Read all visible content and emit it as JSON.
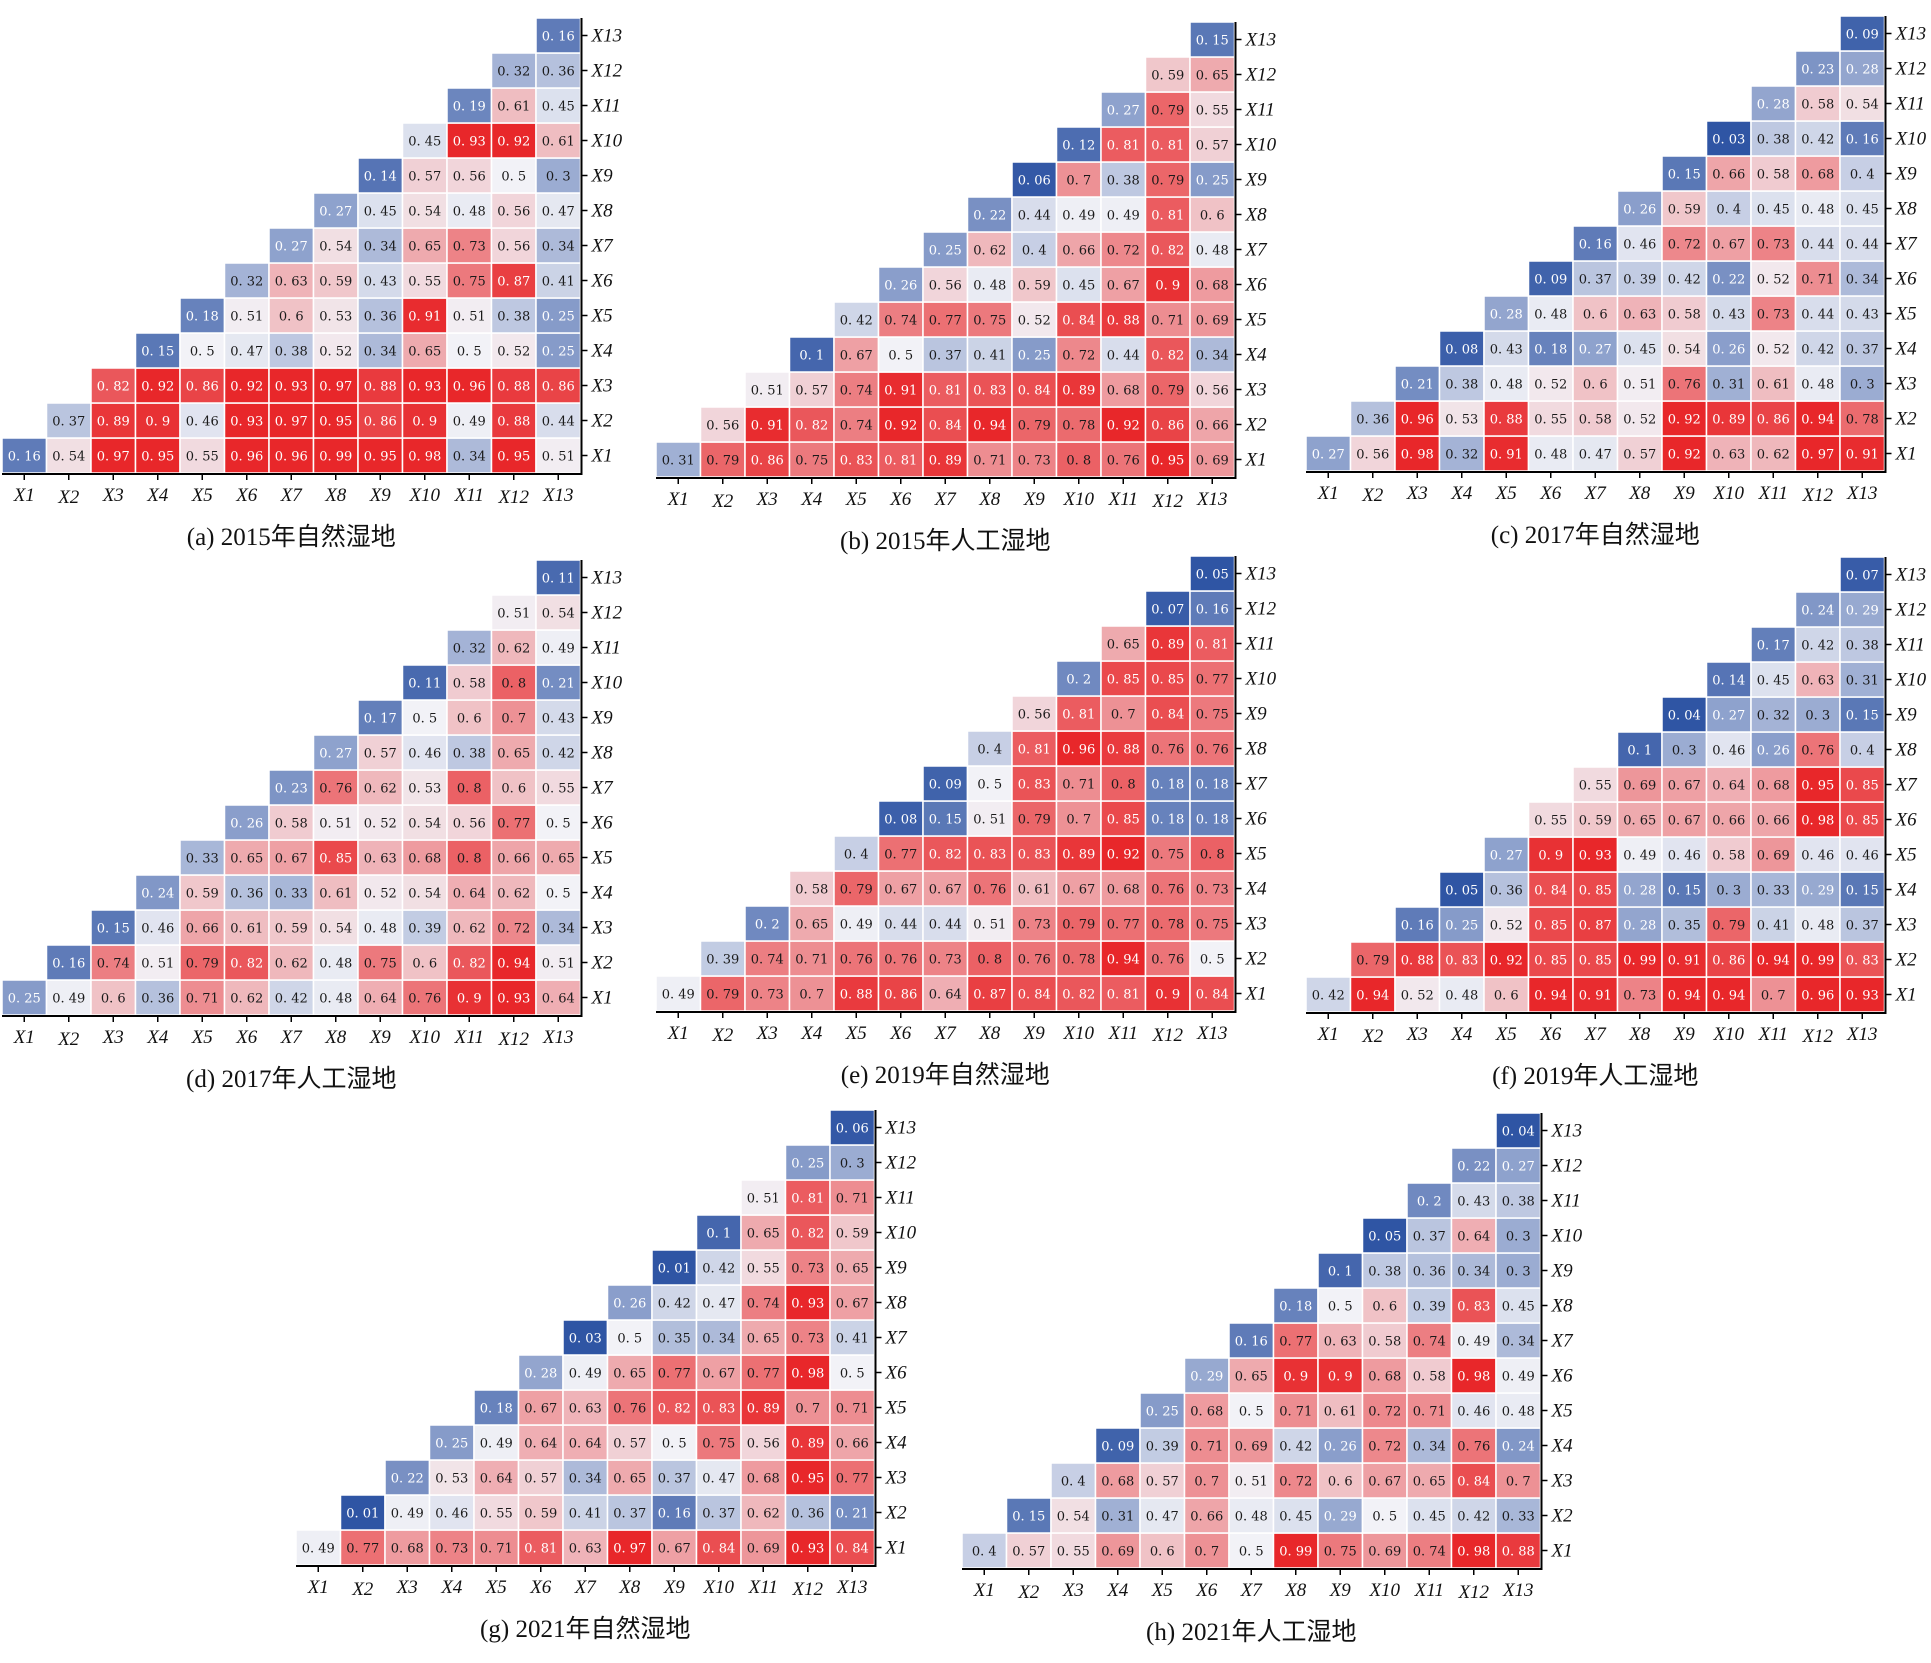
{
  "chart_data": [
    {
      "type": "heatmap",
      "id": "a",
      "title": "(a) 2015年自然湿地",
      "xlabels": [
        "X1",
        "X2",
        "X3",
        "X4",
        "X5",
        "X6",
        "X7",
        "X8",
        "X9",
        "X10",
        "X11",
        "X12",
        "X13"
      ],
      "ylabels": [
        "X1",
        "X2",
        "X3",
        "X4",
        "X5",
        "X6",
        "X7",
        "X8",
        "X9",
        "X10",
        "X11",
        "X12",
        "X13"
      ],
      "rows": [
        [
          "0.16",
          "0.54",
          "0.97",
          "0.95",
          "0.55",
          "0.96",
          "0.96",
          "0.99",
          "0.95",
          "0.98",
          "0.34",
          "0.95",
          "0.51"
        ],
        [
          "0.37",
          "0.89",
          "0.9",
          "0.46",
          "0.93",
          "0.97",
          "0.95",
          "0.86",
          "0.9",
          "0.49",
          "0.88",
          "0.44"
        ],
        [
          "0.82",
          "0.92",
          "0.86",
          "0.92",
          "0.93",
          "0.97",
          "0.88",
          "0.93",
          "0.96",
          "0.88",
          "0.86"
        ],
        [
          "0.15",
          "0.5",
          "0.47",
          "0.38",
          "0.52",
          "0.34",
          "0.65",
          "0.5",
          "0.52",
          "0.25"
        ],
        [
          "0.18",
          "0.51",
          "0.6",
          "0.53",
          "0.36",
          "0.91",
          "0.51",
          "0.38",
          "0.25"
        ],
        [
          "0.32",
          "0.63",
          "0.59",
          "0.43",
          "0.55",
          "0.75",
          "0.87",
          "0.41"
        ],
        [
          "0.27",
          "0.54",
          "0.34",
          "0.65",
          "0.73",
          "0.56",
          "0.34"
        ],
        [
          "0.27",
          "0.45",
          "0.54",
          "0.48",
          "0.56",
          "0.47"
        ],
        [
          "0.14",
          "0.57",
          "0.56",
          "0.5",
          "0.3"
        ],
        [
          "0.45",
          "0.93",
          "0.92",
          "0.61"
        ],
        [
          "0.19",
          "0.61",
          "0.45"
        ],
        [
          "0.32",
          "0.36"
        ],
        [
          "0.16"
        ]
      ]
    },
    {
      "type": "heatmap",
      "id": "b",
      "title": "(b) 2015年人工湿地",
      "xlabels": [
        "X1",
        "X2",
        "X3",
        "X4",
        "X5",
        "X6",
        "X7",
        "X8",
        "X9",
        "X10",
        "X11",
        "X12",
        "X13"
      ],
      "ylabels": [
        "X1",
        "X2",
        "X3",
        "X4",
        "X5",
        "X6",
        "X7",
        "X8",
        "X9",
        "X10",
        "X11",
        "X12",
        "X13"
      ],
      "rows": [
        [
          "0.31",
          "0.79",
          "0.86",
          "0.75",
          "0.83",
          "0.81",
          "0.89",
          "0.71",
          "0.73",
          "0.8",
          "0.76",
          "0.95",
          "0.69"
        ],
        [
          "0.56",
          "0.91",
          "0.82",
          "0.74",
          "0.92",
          "0.84",
          "0.94",
          "0.79",
          "0.78",
          "0.92",
          "0.86",
          "0.66"
        ],
        [
          "0.51",
          "0.57",
          "0.74",
          "0.91",
          "0.81",
          "0.83",
          "0.84",
          "0.89",
          "0.68",
          "0.79",
          "0.56"
        ],
        [
          "0.1",
          "0.67",
          "0.5",
          "0.37",
          "0.41",
          "0.25",
          "0.72",
          "0.44",
          "0.82",
          "0.34"
        ],
        [
          "0.42",
          "0.74",
          "0.77",
          "0.75",
          "0.52",
          "0.84",
          "0.88",
          "0.71",
          "0.69"
        ],
        [
          "0.26",
          "0.56",
          "0.48",
          "0.59",
          "0.45",
          "0.67",
          "0.9",
          "0.68"
        ],
        [
          "0.25",
          "0.62",
          "0.4",
          "0.66",
          "0.72",
          "0.82",
          "0.48"
        ],
        [
          "0.22",
          "0.44",
          "0.49",
          "0.49",
          "0.81",
          "0.6"
        ],
        [
          "0.06",
          "0.7",
          "0.38",
          "0.79",
          "0.25"
        ],
        [
          "0.12",
          "0.81",
          "0.81",
          "0.57"
        ],
        [
          "0.27",
          "0.79",
          "0.55"
        ],
        [
          "0.59",
          "0.65"
        ],
        [
          "0.15"
        ]
      ]
    },
    {
      "type": "heatmap",
      "id": "c",
      "title": "(c) 2017年自然湿地",
      "xlabels": [
        "X1",
        "X2",
        "X3",
        "X4",
        "X5",
        "X6",
        "X7",
        "X8",
        "X9",
        "X10",
        "X11",
        "X12",
        "X13"
      ],
      "ylabels": [
        "X1",
        "X2",
        "X3",
        "X4",
        "X5",
        "X6",
        "X7",
        "X8",
        "X9",
        "X10",
        "X11",
        "X12",
        "X13"
      ],
      "rows": [
        [
          "0.27",
          "0.56",
          "0.98",
          "0.32",
          "0.91",
          "0.48",
          "0.47",
          "0.57",
          "0.92",
          "0.63",
          "0.62",
          "0.97",
          "0.91"
        ],
        [
          "0.36",
          "0.96",
          "0.53",
          "0.88",
          "0.55",
          "0.58",
          "0.52",
          "0.92",
          "0.89",
          "0.86",
          "0.94",
          "0.78"
        ],
        [
          "0.21",
          "0.38",
          "0.48",
          "0.52",
          "0.6",
          "0.51",
          "0.76",
          "0.31",
          "0.61",
          "0.48",
          "0.3"
        ],
        [
          "0.08",
          "0.43",
          "0.18",
          "0.27",
          "0.45",
          "0.54",
          "0.26",
          "0.52",
          "0.42",
          "0.37"
        ],
        [
          "0.28",
          "0.48",
          "0.6",
          "0.63",
          "0.58",
          "0.43",
          "0.73",
          "0.44",
          "0.43"
        ],
        [
          "0.09",
          "0.37",
          "0.39",
          "0.42",
          "0.22",
          "0.52",
          "0.71",
          "0.34"
        ],
        [
          "0.16",
          "0.46",
          "0.72",
          "0.67",
          "0.73",
          "0.44",
          "0.44"
        ],
        [
          "0.26",
          "0.59",
          "0.4",
          "0.45",
          "0.48",
          "0.45"
        ],
        [
          "0.15",
          "0.66",
          "0.58",
          "0.68",
          "0.4"
        ],
        [
          "0.03",
          "0.38",
          "0.42",
          "0.16"
        ],
        [
          "0.28",
          "0.58",
          "0.54"
        ],
        [
          "0.23",
          "0.28"
        ],
        [
          "0.09"
        ]
      ]
    },
    {
      "type": "heatmap",
      "id": "d",
      "title": "(d) 2017年人工湿地",
      "xlabels": [
        "X1",
        "X2",
        "X3",
        "X4",
        "X5",
        "X6",
        "X7",
        "X8",
        "X9",
        "X10",
        "X11",
        "X12",
        "X13"
      ],
      "ylabels": [
        "X1",
        "X2",
        "X3",
        "X4",
        "X5",
        "X6",
        "X7",
        "X8",
        "X9",
        "X10",
        "X11",
        "X12",
        "X13"
      ],
      "rows": [
        [
          "0.25",
          "0.49",
          "0.6",
          "0.36",
          "0.71",
          "0.62",
          "0.42",
          "0.48",
          "0.64",
          "0.76",
          "0.9",
          "0.93",
          "0.64"
        ],
        [
          "0.16",
          "0.74",
          "0.51",
          "0.79",
          "0.82",
          "0.62",
          "0.48",
          "0.75",
          "0.6",
          "0.82",
          "0.94",
          "0.51"
        ],
        [
          "0.15",
          "0.46",
          "0.66",
          "0.61",
          "0.59",
          "0.54",
          "0.48",
          "0.39",
          "0.62",
          "0.72",
          "0.34"
        ],
        [
          "0.24",
          "0.59",
          "0.36",
          "0.33",
          "0.61",
          "0.52",
          "0.54",
          "0.64",
          "0.62",
          "0.5"
        ],
        [
          "0.33",
          "0.65",
          "0.67",
          "0.85",
          "0.63",
          "0.68",
          "0.8",
          "0.66",
          "0.65"
        ],
        [
          "0.26",
          "0.58",
          "0.51",
          "0.52",
          "0.54",
          "0.56",
          "0.77",
          "0.5"
        ],
        [
          "0.23",
          "0.76",
          "0.62",
          "0.53",
          "0.8",
          "0.6",
          "0.55"
        ],
        [
          "0.27",
          "0.57",
          "0.46",
          "0.38",
          "0.65",
          "0.42"
        ],
        [
          "0.17",
          "0.5",
          "0.6",
          "0.7",
          "0.43"
        ],
        [
          "0.11",
          "0.58",
          "0.8",
          "0.21"
        ],
        [
          "0.32",
          "0.62",
          "0.49"
        ],
        [
          "0.51",
          "0.54"
        ],
        [
          "0.11"
        ]
      ]
    },
    {
      "type": "heatmap",
      "id": "e",
      "title": "(e) 2019年自然湿地",
      "xlabels": [
        "X1",
        "X2",
        "X3",
        "X4",
        "X5",
        "X6",
        "X7",
        "X8",
        "X9",
        "X10",
        "X11",
        "X12",
        "X13"
      ],
      "ylabels": [
        "X1",
        "X2",
        "X3",
        "X4",
        "X5",
        "X6",
        "X7",
        "X8",
        "X9",
        "X10",
        "X11",
        "X12",
        "X13"
      ],
      "rows": [
        [
          "0.49",
          "0.79",
          "0.73",
          "0.7",
          "0.88",
          "0.86",
          "0.64",
          "0.87",
          "0.84",
          "0.82",
          "0.81",
          "0.9",
          "0.84"
        ],
        [
          "0.39",
          "0.74",
          "0.71",
          "0.76",
          "0.76",
          "0.73",
          "0.8",
          "0.76",
          "0.78",
          "0.94",
          "0.76",
          "0.5"
        ],
        [
          "0.2",
          "0.65",
          "0.49",
          "0.44",
          "0.44",
          "0.51",
          "0.73",
          "0.79",
          "0.77",
          "0.78",
          "0.75"
        ],
        [
          "0.58",
          "0.79",
          "0.67",
          "0.67",
          "0.76",
          "0.61",
          "0.67",
          "0.68",
          "0.76",
          "0.73"
        ],
        [
          "0.4",
          "0.77",
          "0.82",
          "0.83",
          "0.83",
          "0.89",
          "0.92",
          "0.75",
          "0.8"
        ],
        [
          "0.08",
          "0.15",
          "0.51",
          "0.79",
          "0.7",
          "0.85",
          "0.18",
          "0.18"
        ],
        [
          "0.09",
          "0.5",
          "0.83",
          "0.71",
          "0.8",
          "0.18",
          "0.18"
        ],
        [
          "0.4",
          "0.81",
          "0.96",
          "0.88",
          "0.76",
          "0.76"
        ],
        [
          "0.56",
          "0.81",
          "0.7",
          "0.84",
          "0.75"
        ],
        [
          "0.2",
          "0.85",
          "0.85",
          "0.77"
        ],
        [
          "0.65",
          "0.89",
          "0.81"
        ],
        [
          "0.07",
          "0.16"
        ],
        [
          "0.05"
        ]
      ]
    },
    {
      "type": "heatmap",
      "id": "f",
      "title": "(f) 2019年人工湿地",
      "xlabels": [
        "X1",
        "X2",
        "X3",
        "X4",
        "X5",
        "X6",
        "X7",
        "X8",
        "X9",
        "X10",
        "X11",
        "X12",
        "X13"
      ],
      "ylabels": [
        "X1",
        "X2",
        "X3",
        "X4",
        "X5",
        "X6",
        "X7",
        "X8",
        "X9",
        "X10",
        "X11",
        "X12",
        "X13"
      ],
      "rows": [
        [
          "0.42",
          "0.94",
          "0.52",
          "0.48",
          "0.6",
          "0.94",
          "0.91",
          "0.73",
          "0.94",
          "0.94",
          "0.7",
          "0.96",
          "0.93"
        ],
        [
          "0.79",
          "0.88",
          "0.83",
          "0.92",
          "0.85",
          "0.85",
          "0.99",
          "0.91",
          "0.86",
          "0.94",
          "0.99",
          "0.83"
        ],
        [
          "0.16",
          "0.25",
          "0.52",
          "0.85",
          "0.87",
          "0.28",
          "0.35",
          "0.79",
          "0.41",
          "0.48",
          "0.37"
        ],
        [
          "0.05",
          "0.36",
          "0.84",
          "0.85",
          "0.28",
          "0.15",
          "0.3",
          "0.33",
          "0.29",
          "0.15"
        ],
        [
          "0.27",
          "0.9",
          "0.93",
          "0.49",
          "0.46",
          "0.58",
          "0.69",
          "0.46",
          "0.46"
        ],
        [
          "0.55",
          "0.59",
          "0.65",
          "0.67",
          "0.66",
          "0.66",
          "0.98",
          "0.85"
        ],
        [
          "0.55",
          "0.69",
          "0.67",
          "0.64",
          "0.68",
          "0.95",
          "0.85"
        ],
        [
          "0.1",
          "0.3",
          "0.46",
          "0.26",
          "0.76",
          "0.4"
        ],
        [
          "0.04",
          "0.27",
          "0.32",
          "0.3",
          "0.15"
        ],
        [
          "0.14",
          "0.45",
          "0.63",
          "0.31"
        ],
        [
          "0.17",
          "0.42",
          "0.38"
        ],
        [
          "0.24",
          "0.29"
        ],
        [
          "0.07"
        ]
      ]
    },
    {
      "type": "heatmap",
      "id": "g",
      "title": "(g) 2021年自然湿地",
      "xlabels": [
        "X1",
        "X2",
        "X3",
        "X4",
        "X5",
        "X6",
        "X7",
        "X8",
        "X9",
        "X10",
        "X11",
        "X12",
        "X13"
      ],
      "ylabels": [
        "X1",
        "X2",
        "X3",
        "X4",
        "X5",
        "X6",
        "X7",
        "X8",
        "X9",
        "X10",
        "X11",
        "X12",
        "X13"
      ],
      "rows": [
        [
          "0.49",
          "0.77",
          "0.68",
          "0.73",
          "0.71",
          "0.81",
          "0.63",
          "0.97",
          "0.67",
          "0.84",
          "0.69",
          "0.93",
          "0.84"
        ],
        [
          "0.01",
          "0.49",
          "0.46",
          "0.55",
          "0.59",
          "0.41",
          "0.37",
          "0.16",
          "0.37",
          "0.62",
          "0.36",
          "0.21"
        ],
        [
          "0.22",
          "0.53",
          "0.64",
          "0.57",
          "0.34",
          "0.65",
          "0.37",
          "0.47",
          "0.68",
          "0.95",
          "0.77"
        ],
        [
          "0.25",
          "0.49",
          "0.64",
          "0.64",
          "0.57",
          "0.5",
          "0.75",
          "0.56",
          "0.89",
          "0.66"
        ],
        [
          "0.18",
          "0.67",
          "0.63",
          "0.76",
          "0.82",
          "0.83",
          "0.89",
          "0.7",
          "0.71"
        ],
        [
          "0.28",
          "0.49",
          "0.65",
          "0.77",
          "0.67",
          "0.77",
          "0.98",
          "0.5"
        ],
        [
          "0.03",
          "0.5",
          "0.35",
          "0.34",
          "0.65",
          "0.73",
          "0.41"
        ],
        [
          "0.26",
          "0.42",
          "0.47",
          "0.74",
          "0.93",
          "0.67"
        ],
        [
          "0.01",
          "0.42",
          "0.55",
          "0.73",
          "0.65"
        ],
        [
          "0.1",
          "0.65",
          "0.82",
          "0.59"
        ],
        [
          "0.51",
          "0.81",
          "0.71"
        ],
        [
          "0.25",
          "0.3"
        ],
        [
          "0.06"
        ]
      ]
    },
    {
      "type": "heatmap",
      "id": "h",
      "title": "(h) 2021年人工湿地",
      "xlabels": [
        "X1",
        "X2",
        "X3",
        "X4",
        "X5",
        "X6",
        "X7",
        "X8",
        "X9",
        "X10",
        "X11",
        "X12",
        "X13"
      ],
      "ylabels": [
        "X1",
        "X2",
        "X3",
        "X4",
        "X5",
        "X6",
        "X7",
        "X8",
        "X9",
        "X10",
        "X11",
        "X12",
        "X13"
      ],
      "rows": [
        [
          "0.4",
          "0.57",
          "0.55",
          "0.69",
          "0.6",
          "0.7",
          "0.5",
          "0.99",
          "0.75",
          "0.69",
          "0.74",
          "0.98",
          "0.88"
        ],
        [
          "0.15",
          "0.54",
          "0.31",
          "0.47",
          "0.66",
          "0.48",
          "0.45",
          "0.29",
          "0.5",
          "0.45",
          "0.42",
          "0.33"
        ],
        [
          "0.4",
          "0.68",
          "0.57",
          "0.7",
          "0.51",
          "0.72",
          "0.6",
          "0.67",
          "0.65",
          "0.84",
          "0.7"
        ],
        [
          "0.09",
          "0.39",
          "0.71",
          "0.69",
          "0.42",
          "0.26",
          "0.72",
          "0.34",
          "0.76",
          "0.24"
        ],
        [
          "0.25",
          "0.68",
          "0.5",
          "0.71",
          "0.61",
          "0.72",
          "0.71",
          "0.46",
          "0.48"
        ],
        [
          "0.29",
          "0.65",
          "0.9",
          "0.9",
          "0.68",
          "0.58",
          "0.98",
          "0.49"
        ],
        [
          "0.16",
          "0.77",
          "0.63",
          "0.58",
          "0.74",
          "0.49",
          "0.34"
        ],
        [
          "0.18",
          "0.5",
          "0.6",
          "0.39",
          "0.83",
          "0.45"
        ],
        [
          "0.1",
          "0.38",
          "0.36",
          "0.34",
          "0.3"
        ],
        [
          "0.05",
          "0.37",
          "0.64",
          "0.3"
        ],
        [
          "0.2",
          "0.43",
          "0.38"
        ],
        [
          "0.22",
          "0.27"
        ],
        [
          "0.04"
        ]
      ]
    }
  ],
  "colors": {
    "low": "#2f55a4",
    "mid": "#f2f2f7",
    "high": "#e8272a"
  }
}
